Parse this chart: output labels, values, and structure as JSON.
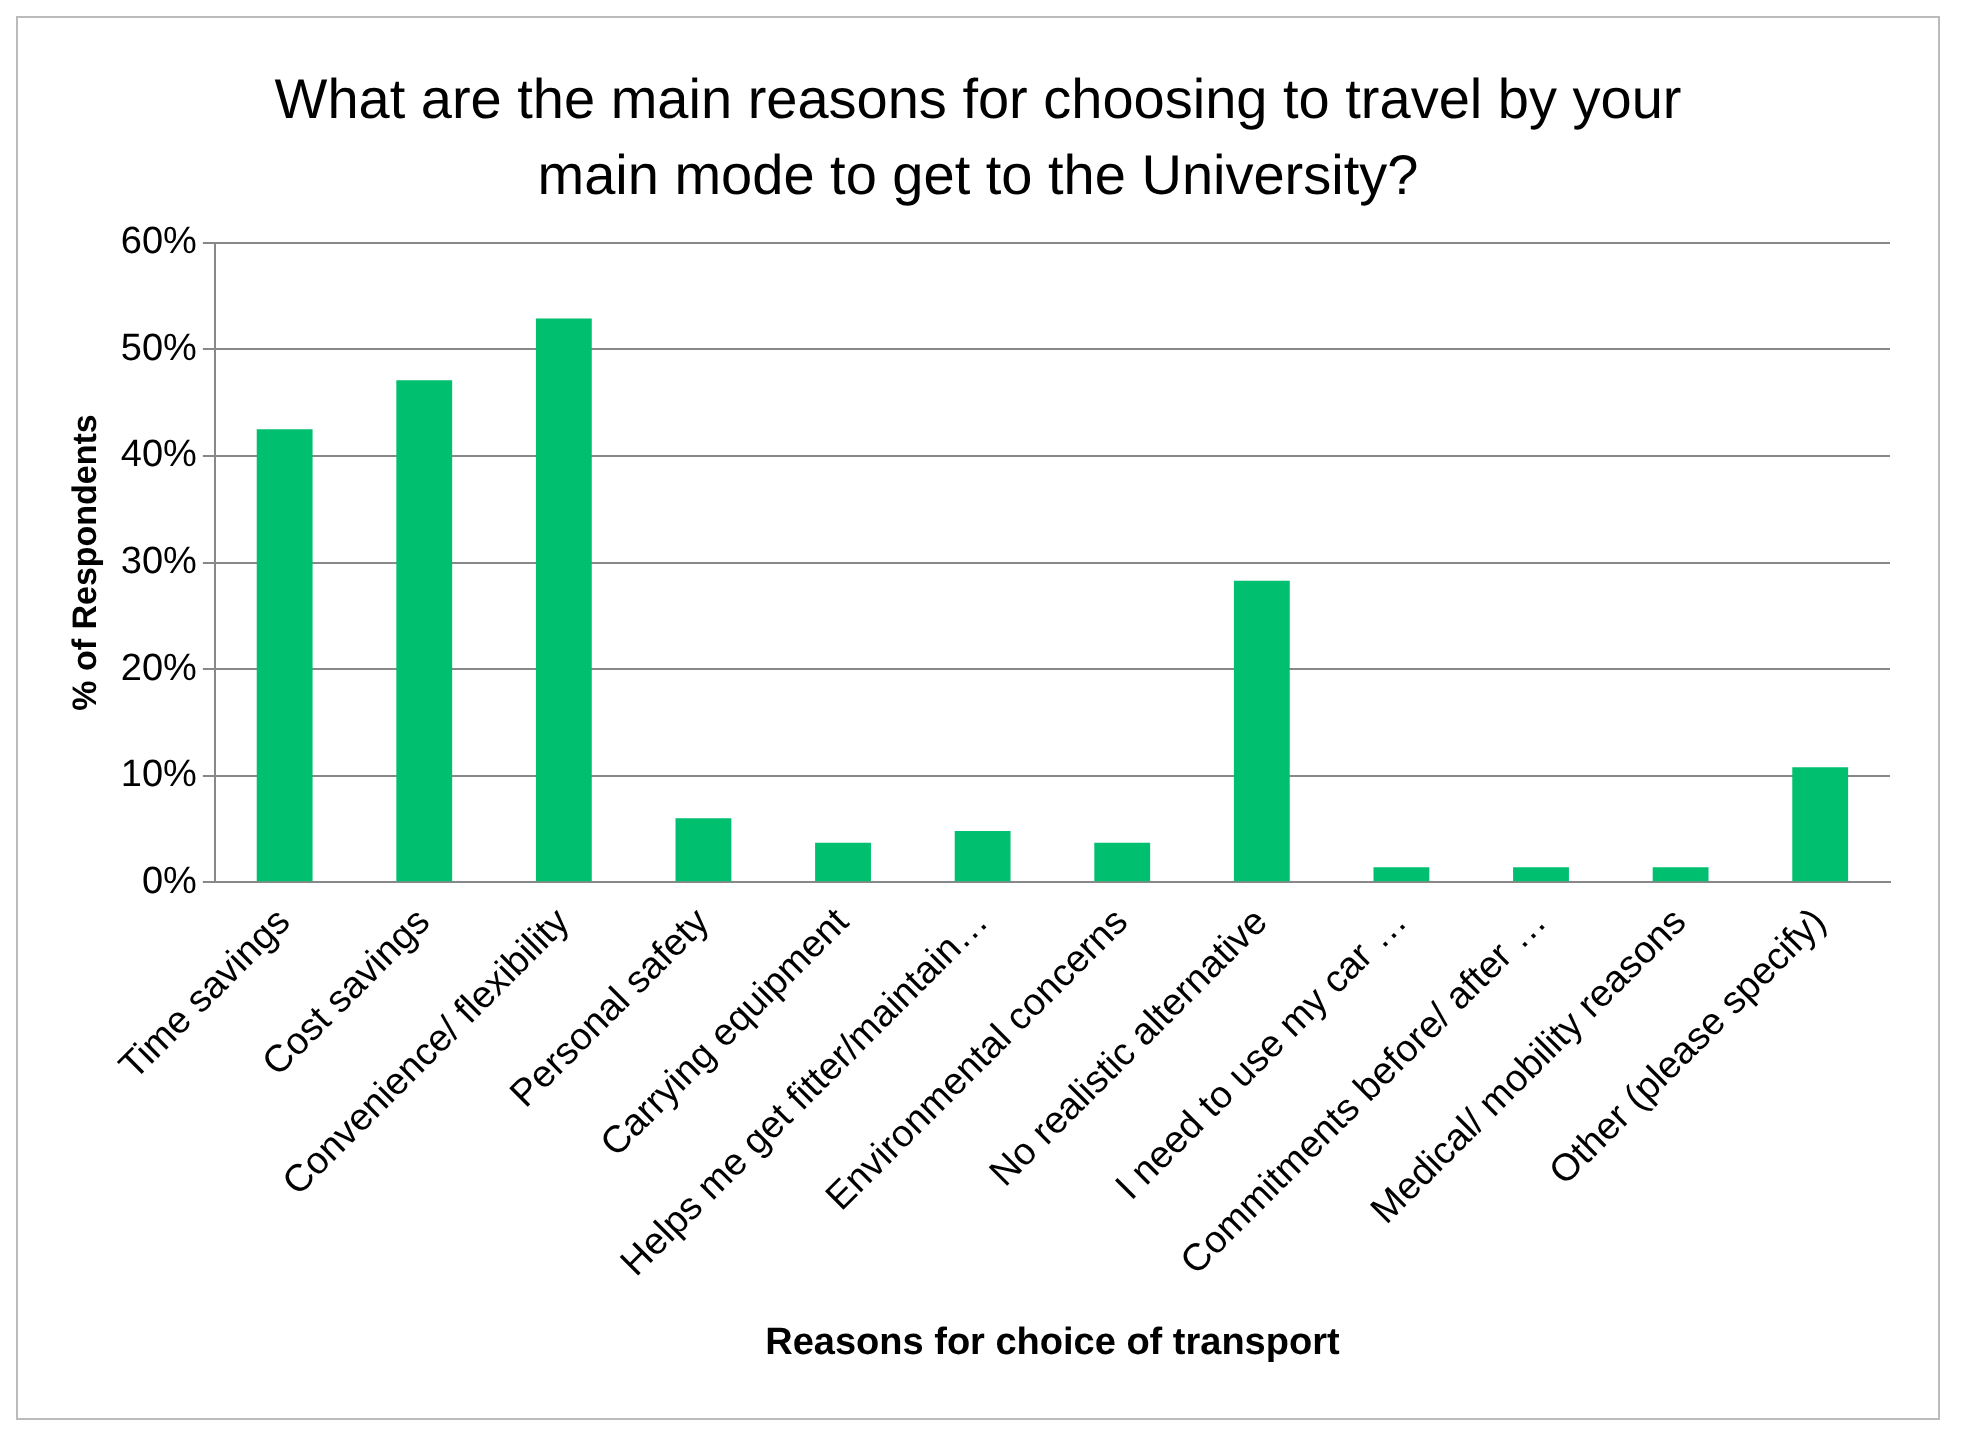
{
  "chart_data": {
    "type": "bar",
    "title": "What are the main reasons for choosing to travel by your main mode to get to the University?",
    "xlabel": "Reasons for choice of transport",
    "ylabel": "% of Respondents",
    "categories": [
      "Time savings",
      "Cost savings",
      "Convenience/ flexibility",
      "Personal safety",
      "Carrying equipment",
      "Helps me get fitter/maintain…",
      "Environmental concerns",
      "No realistic alternative",
      "I need to use my car …",
      "Commitments before/ after …",
      "Medical/ mobility reasons",
      "Other (please specify)"
    ],
    "values": [
      42.5,
      47.1,
      52.9,
      6,
      3.7,
      4.8,
      3.7,
      28.3,
      1.4,
      1.4,
      1.4,
      10.8
    ],
    "color": "#00bf6f",
    "ylim": [
      0,
      60
    ],
    "yticks": [
      {
        "value": 0,
        "label": "0%"
      },
      {
        "value": 10,
        "label": "10%"
      },
      {
        "value": 20,
        "label": "20%"
      },
      {
        "value": 30,
        "label": "30%"
      },
      {
        "value": 40,
        "label": "40%"
      },
      {
        "value": 50,
        "label": "50%"
      },
      {
        "value": 60,
        "label": "60%"
      }
    ],
    "grid": "y",
    "legend": false
  }
}
